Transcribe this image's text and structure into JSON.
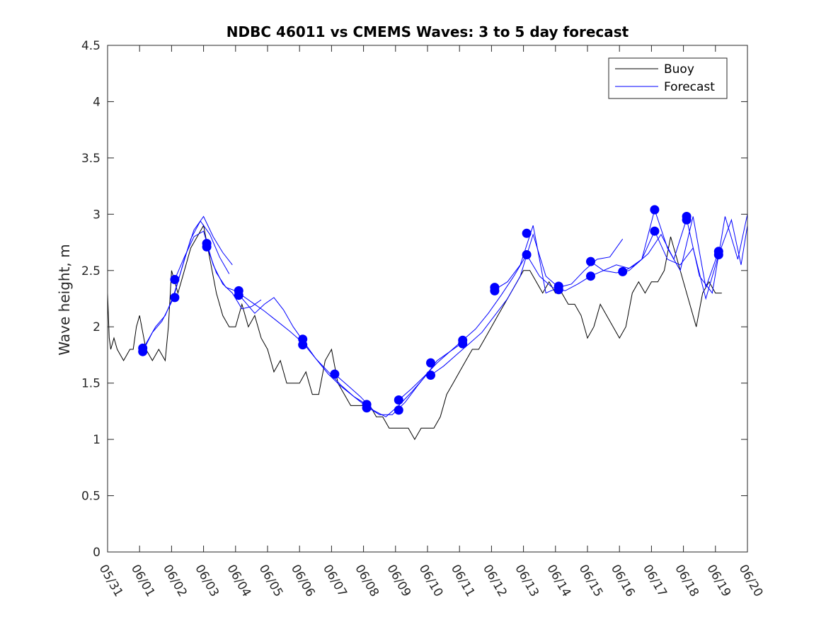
{
  "chart_data": {
    "type": "line",
    "title": "NDBC 46011 vs CMEMS Waves: 3 to 5 day forecast",
    "xlabel": "",
    "ylabel": "Wave height, m",
    "xlim": [
      "05/31",
      "06/20"
    ],
    "ylim": [
      0,
      4.5
    ],
    "yticks": [
      0,
      0.5,
      1,
      1.5,
      2,
      2.5,
      3,
      3.5,
      4,
      4.5
    ],
    "ytick_labels": [
      "0",
      "0.5",
      "1",
      "1.5",
      "2",
      "2.5",
      "3",
      "3.5",
      "4",
      "4.5"
    ],
    "xtick_labels": [
      "05/31",
      "06/01",
      "06/02",
      "06/03",
      "06/04",
      "06/05",
      "06/06",
      "06/07",
      "06/08",
      "06/09",
      "06/10",
      "06/11",
      "06/12",
      "06/13",
      "06/14",
      "06/15",
      "06/16",
      "06/17",
      "06/18",
      "06/19",
      "06/20"
    ],
    "grid": false,
    "legend_position": "top-right",
    "colors": {
      "buoy": "#000000",
      "forecast": "#0000ff",
      "markers": "#0000ff"
    },
    "series": [
      {
        "name": "Buoy",
        "x_day": [
          0,
          0.05,
          0.1,
          0.2,
          0.3,
          0.5,
          0.7,
          0.8,
          0.9,
          1.0,
          1.2,
          1.4,
          1.6,
          1.8,
          1.9,
          2.0,
          2.1,
          2.2,
          2.4,
          2.6,
          2.8,
          3.0,
          3.2,
          3.4,
          3.6,
          3.8,
          4.0,
          4.2,
          4.4,
          4.6,
          4.8,
          5.0,
          5.2,
          5.4,
          5.6,
          5.8,
          6.0,
          6.2,
          6.4,
          6.6,
          6.8,
          7.0,
          7.2,
          7.4,
          7.6,
          7.8,
          8.0,
          8.2,
          8.4,
          8.6,
          8.8,
          9.0,
          9.2,
          9.4,
          9.6,
          9.8,
          10.0,
          10.2,
          10.4,
          10.6,
          10.8,
          11.0,
          11.2,
          11.4,
          11.6,
          11.8,
          12.0,
          12.2,
          12.4,
          12.6,
          12.8,
          13.0,
          13.2,
          13.4,
          13.6,
          13.8,
          14.0,
          14.2,
          14.4,
          14.6,
          14.8,
          15.0,
          15.2,
          15.4,
          15.6,
          15.8,
          16.0,
          16.2,
          16.4,
          16.6,
          16.8,
          17.0,
          17.2,
          17.4,
          17.6,
          17.8,
          18.0,
          18.2,
          18.4,
          18.6,
          18.8,
          19.0,
          19.2
        ],
        "values": [
          2.3,
          1.9,
          1.8,
          1.9,
          1.8,
          1.7,
          1.8,
          1.8,
          2.0,
          2.1,
          1.8,
          1.7,
          1.8,
          1.7,
          2.0,
          2.5,
          2.4,
          2.3,
          2.5,
          2.7,
          2.8,
          2.9,
          2.6,
          2.3,
          2.1,
          2.0,
          2.0,
          2.2,
          2.0,
          2.1,
          1.9,
          1.8,
          1.6,
          1.7,
          1.5,
          1.5,
          1.5,
          1.6,
          1.4,
          1.4,
          1.7,
          1.8,
          1.5,
          1.4,
          1.3,
          1.3,
          1.3,
          1.3,
          1.2,
          1.2,
          1.1,
          1.1,
          1.1,
          1.1,
          1.0,
          1.1,
          1.1,
          1.1,
          1.2,
          1.4,
          1.5,
          1.6,
          1.7,
          1.8,
          1.8,
          1.9,
          2.0,
          2.1,
          2.2,
          2.3,
          2.4,
          2.5,
          2.5,
          2.4,
          2.3,
          2.4,
          2.3,
          2.3,
          2.2,
          2.2,
          2.1,
          1.9,
          2.0,
          2.2,
          2.1,
          2.0,
          1.9,
          2.0,
          2.3,
          2.4,
          2.3,
          2.4,
          2.4,
          2.5,
          2.8,
          2.6,
          2.4,
          2.2,
          2.0,
          2.3,
          2.4,
          2.3,
          2.3
        ]
      },
      {
        "name": "Forecast",
        "segments": [
          {
            "x_day": [
              1.1,
              1.4,
              1.7,
              2.0,
              2.3,
              2.6,
              2.9,
              3.2,
              3.5,
              3.8
            ],
            "values": [
              1.78,
              1.95,
              2.05,
              2.22,
              2.5,
              2.78,
              2.94,
              2.82,
              2.62,
              2.47
            ]
          },
          {
            "x_day": [
              1.1,
              1.5,
              1.8,
              2.1,
              2.4,
              2.7,
              3.0,
              3.3,
              3.6,
              3.9
            ],
            "values": [
              1.8,
              2.0,
              2.1,
              2.3,
              2.6,
              2.86,
              2.98,
              2.8,
              2.66,
              2.55
            ]
          },
          {
            "x_day": [
              2.1,
              2.4,
              2.7,
              3.0,
              3.3,
              3.6,
              3.9,
              4.2,
              4.5,
              4.8
            ],
            "values": [
              2.42,
              2.62,
              2.8,
              2.85,
              2.55,
              2.38,
              2.3,
              2.16,
              2.18,
              2.24
            ]
          },
          {
            "x_day": [
              3.1,
              3.4,
              3.7,
              4.0,
              4.3,
              4.6,
              4.9,
              5.2,
              5.5,
              5.8,
              6.1
            ],
            "values": [
              2.72,
              2.48,
              2.35,
              2.32,
              2.22,
              2.12,
              2.2,
              2.26,
              2.15,
              2.0,
              1.88
            ]
          },
          {
            "x_day": [
              4.1,
              4.5,
              4.9,
              5.3,
              5.7,
              6.1,
              6.5,
              6.9,
              7.3,
              7.7,
              8.1
            ],
            "values": [
              2.3,
              2.22,
              2.14,
              2.05,
              1.96,
              1.86,
              1.72,
              1.6,
              1.48,
              1.38,
              1.31
            ]
          },
          {
            "x_day": [
              6.1,
              6.5,
              6.9,
              7.3,
              7.7,
              8.1,
              8.5,
              8.9,
              9.3,
              9.7,
              10.1
            ],
            "values": [
              1.88,
              1.72,
              1.58,
              1.47,
              1.38,
              1.29,
              1.22,
              1.22,
              1.33,
              1.48,
              1.62
            ]
          },
          {
            "x_day": [
              7.1,
              7.5,
              7.9,
              8.3,
              8.7,
              9.1,
              9.5,
              9.9,
              10.3,
              10.7,
              11.1
            ],
            "values": [
              1.58,
              1.48,
              1.38,
              1.26,
              1.2,
              1.3,
              1.42,
              1.55,
              1.7,
              1.78,
              1.86
            ]
          },
          {
            "x_day": [
              9.1,
              9.5,
              9.9,
              10.3,
              10.7,
              11.1,
              11.5,
              11.9,
              12.3,
              12.7,
              13.1
            ],
            "values": [
              1.35,
              1.45,
              1.56,
              1.68,
              1.78,
              1.88,
              1.98,
              2.12,
              2.28,
              2.45,
              2.64
            ]
          },
          {
            "x_day": [
              10.1,
              10.5,
              10.9,
              11.3,
              11.7,
              12.1,
              12.5,
              12.9,
              13.3,
              13.7,
              14.1
            ],
            "values": [
              1.57,
              1.65,
              1.75,
              1.85,
              1.95,
              2.1,
              2.25,
              2.45,
              2.82,
              2.45,
              2.35
            ]
          },
          {
            "x_day": [
              12.1,
              12.5,
              12.9,
              13.3,
              13.5,
              13.7,
              14.1,
              14.5,
              14.9,
              15.3,
              15.7,
              16.1
            ],
            "values": [
              2.33,
              2.4,
              2.55,
              2.9,
              2.6,
              2.3,
              2.35,
              2.38,
              2.5,
              2.6,
              2.62,
              2.78
            ]
          },
          {
            "x_day": [
              13.1,
              13.5,
              13.9,
              14.3,
              14.7,
              15.1,
              15.5,
              15.9,
              16.3,
              16.7,
              17.1
            ],
            "values": [
              2.64,
              2.45,
              2.35,
              2.32,
              2.38,
              2.45,
              2.5,
              2.55,
              2.52,
              2.6,
              2.85
            ]
          },
          {
            "x_day": [
              15.1,
              15.5,
              15.9,
              16.3,
              16.7,
              17.1,
              17.5,
              17.9,
              18.3,
              18.7,
              19.1
            ],
            "values": [
              2.58,
              2.5,
              2.48,
              2.5,
              2.6,
              3.04,
              2.7,
              2.5,
              2.98,
              2.35,
              2.67
            ]
          },
          {
            "x_day": [
              16.1,
              16.5,
              16.9,
              17.3,
              17.7,
              18.1,
              18.5,
              18.9,
              19.3,
              19.7,
              20.0
            ],
            "values": [
              2.49,
              2.55,
              2.65,
              2.82,
              2.6,
              2.96,
              2.45,
              2.3,
              2.98,
              2.6,
              3.0
            ]
          },
          {
            "x_day": [
              17.1,
              17.5,
              17.9,
              18.3,
              18.7,
              19.1,
              19.5,
              19.8,
              20.0
            ],
            "values": [
              2.85,
              2.6,
              2.55,
              2.7,
              2.25,
              2.64,
              2.95,
              2.55,
              2.9
            ]
          }
        ]
      }
    ],
    "markers": {
      "x_day": [
        1.1,
        1.1,
        2.1,
        2.1,
        3.1,
        3.1,
        4.1,
        4.1,
        6.1,
        6.1,
        7.1,
        8.1,
        8.1,
        9.1,
        9.1,
        10.1,
        10.1,
        11.1,
        11.1,
        12.1,
        12.1,
        13.1,
        13.1,
        14.1,
        14.1,
        15.1,
        15.1,
        16.1,
        17.1,
        17.1,
        18.1,
        18.1,
        19.1,
        19.1
      ],
      "values": [
        1.78,
        1.81,
        2.42,
        2.26,
        2.74,
        2.71,
        2.32,
        2.28,
        1.89,
        1.84,
        1.58,
        1.31,
        1.28,
        1.35,
        1.26,
        1.68,
        1.57,
        1.88,
        1.85,
        2.35,
        2.32,
        2.83,
        2.64,
        2.36,
        2.33,
        2.58,
        2.45,
        2.49,
        3.04,
        2.85,
        2.98,
        2.95,
        2.67,
        2.64
      ]
    }
  }
}
